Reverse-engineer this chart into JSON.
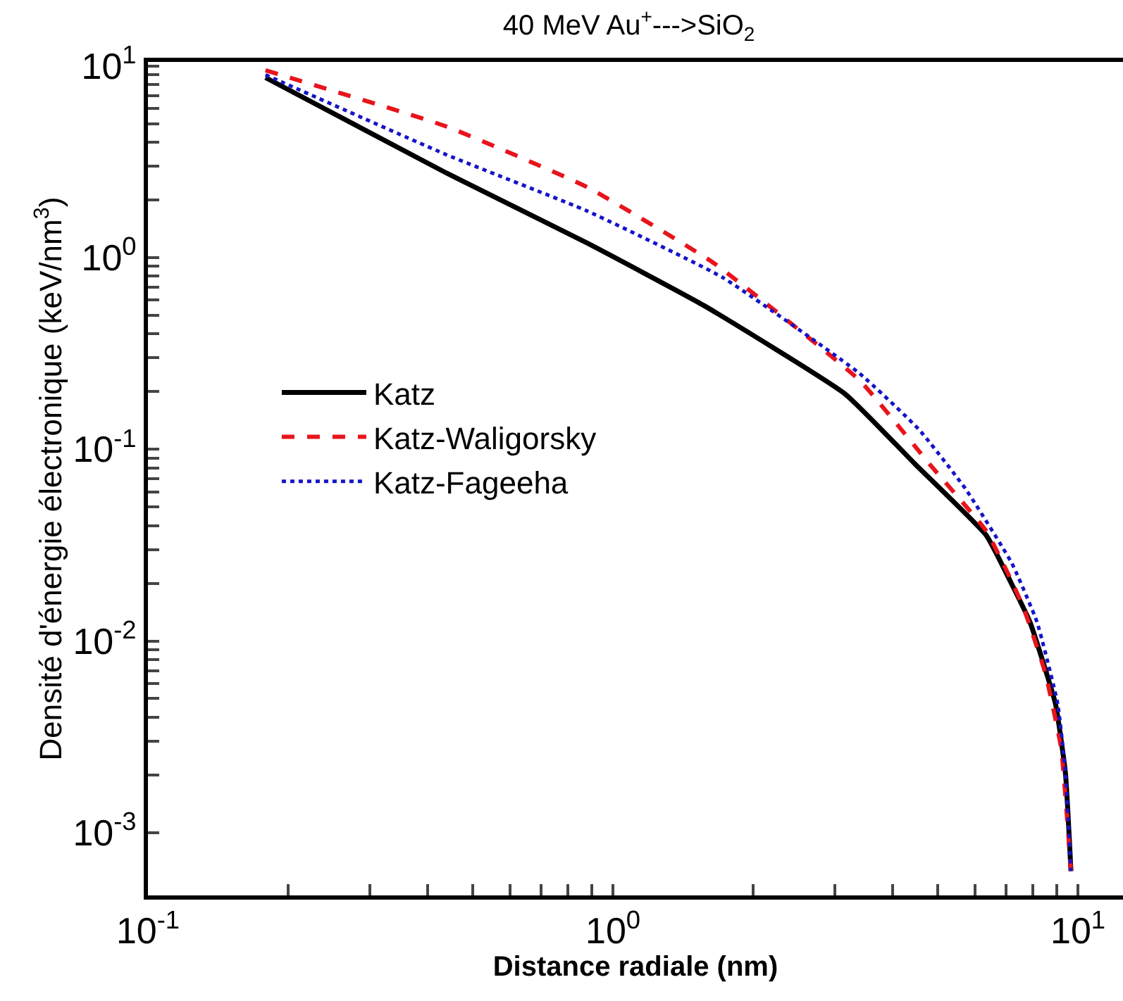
{
  "chart_data": {
    "type": "line",
    "title": "40 MeV Au$^{+}$--->SiO$_{2}$",
    "xlabel": "Distance radiale (nm)",
    "ylabel": "Densité d'énergie électronique (keV/nm$^{3}$)",
    "log": "xy",
    "legend": "center left",
    "xlim": [
      0.1,
      12.5
    ],
    "ylim": [
      0.00047,
      10.5
    ],
    "xticks": [
      {
        "value": 0.1,
        "label": "10$^{-1}$"
      },
      {
        "value": 0.2,
        "label": null
      },
      {
        "value": 0.3,
        "label": null
      },
      {
        "value": 0.4,
        "label": null
      },
      {
        "value": 0.5,
        "label": null
      },
      {
        "value": 0.6,
        "label": null
      },
      {
        "value": 0.7,
        "label": null
      },
      {
        "value": 0.8,
        "label": null
      },
      {
        "value": 0.9,
        "label": null
      },
      {
        "value": 1,
        "label": "10$^{0}$"
      },
      {
        "value": 2,
        "label": null
      },
      {
        "value": 3,
        "label": null
      },
      {
        "value": 4,
        "label": null
      },
      {
        "value": 5,
        "label": null
      },
      {
        "value": 6,
        "label": null
      },
      {
        "value": 7,
        "label": null
      },
      {
        "value": 8,
        "label": null
      },
      {
        "value": 9,
        "label": null
      },
      {
        "value": 10,
        "label": "10$^{1}$"
      }
    ],
    "yticks": [
      {
        "value": 0.001,
        "label": "10$^{-3}$"
      },
      {
        "value": 0.002,
        "label": null
      },
      {
        "value": 0.003,
        "label": null
      },
      {
        "value": 0.004,
        "label": null
      },
      {
        "value": 0.005,
        "label": null
      },
      {
        "value": 0.006,
        "label": null
      },
      {
        "value": 0.007,
        "label": null
      },
      {
        "value": 0.008,
        "label": null
      },
      {
        "value": 0.009,
        "label": null
      },
      {
        "value": 0.01,
        "label": "10$^{-2}$"
      },
      {
        "value": 0.02,
        "label": null
      },
      {
        "value": 0.03,
        "label": null
      },
      {
        "value": 0.04,
        "label": null
      },
      {
        "value": 0.05,
        "label": null
      },
      {
        "value": 0.06,
        "label": null
      },
      {
        "value": 0.07,
        "label": null
      },
      {
        "value": 0.08,
        "label": null
      },
      {
        "value": 0.09,
        "label": null
      },
      {
        "value": 0.1,
        "label": "10$^{-1}$"
      },
      {
        "value": 0.2,
        "label": null
      },
      {
        "value": 0.3,
        "label": null
      },
      {
        "value": 0.4,
        "label": null
      },
      {
        "value": 0.5,
        "label": null
      },
      {
        "value": 0.6,
        "label": null
      },
      {
        "value": 0.7,
        "label": null
      },
      {
        "value": 0.8,
        "label": null
      },
      {
        "value": 0.9,
        "label": null
      },
      {
        "value": 1,
        "label": "10$^{0}$"
      },
      {
        "value": 2,
        "label": null
      },
      {
        "value": 3,
        "label": null
      },
      {
        "value": 4,
        "label": null
      },
      {
        "value": 5,
        "label": null
      },
      {
        "value": 6,
        "label": null
      },
      {
        "value": 7,
        "label": null
      },
      {
        "value": 8,
        "label": null
      },
      {
        "value": 9,
        "label": null
      },
      {
        "value": 10,
        "label": "10$^{1}$"
      }
    ],
    "series": [
      {
        "name": "Katz",
        "color": "#000000",
        "line_style": "solid",
        "x": [
          0.179,
          0.439,
          0.881,
          1.57,
          3.16,
          4.48,
          6.35,
          7.16,
          7.89,
          8.95,
          9.4,
          9.66
        ],
        "values": [
          8.7,
          2.76,
          1.19,
          0.562,
          0.194,
          0.083,
          0.0356,
          0.0204,
          0.0125,
          0.00468,
          0.00204,
          0.00063
        ]
      },
      {
        "name": "Katz-Waligorsky",
        "color": "#e8141b",
        "line_style": "dashed",
        "x": [
          0.179,
          0.439,
          0.881,
          1.65,
          3.39,
          4.81,
          6.35,
          7.21,
          7.67,
          8.51,
          9.2,
          9.66
        ],
        "values": [
          9.5,
          4.83,
          2.33,
          0.935,
          0.229,
          0.083,
          0.0375,
          0.0204,
          0.0145,
          0.00678,
          0.00276,
          0.00063
        ]
      },
      {
        "name": "Katz-Fageeha",
        "color": "#1414c8",
        "line_style": "dotted",
        "x": [
          0.179,
          0.439,
          0.881,
          1.72,
          3.39,
          4.55,
          5.73,
          7.21,
          8.17,
          9.05,
          9.4,
          9.66
        ],
        "values": [
          9.0,
          3.44,
          1.75,
          0.789,
          0.249,
          0.127,
          0.0622,
          0.0254,
          0.0125,
          0.00468,
          0.00204,
          0.00063
        ]
      }
    ]
  }
}
